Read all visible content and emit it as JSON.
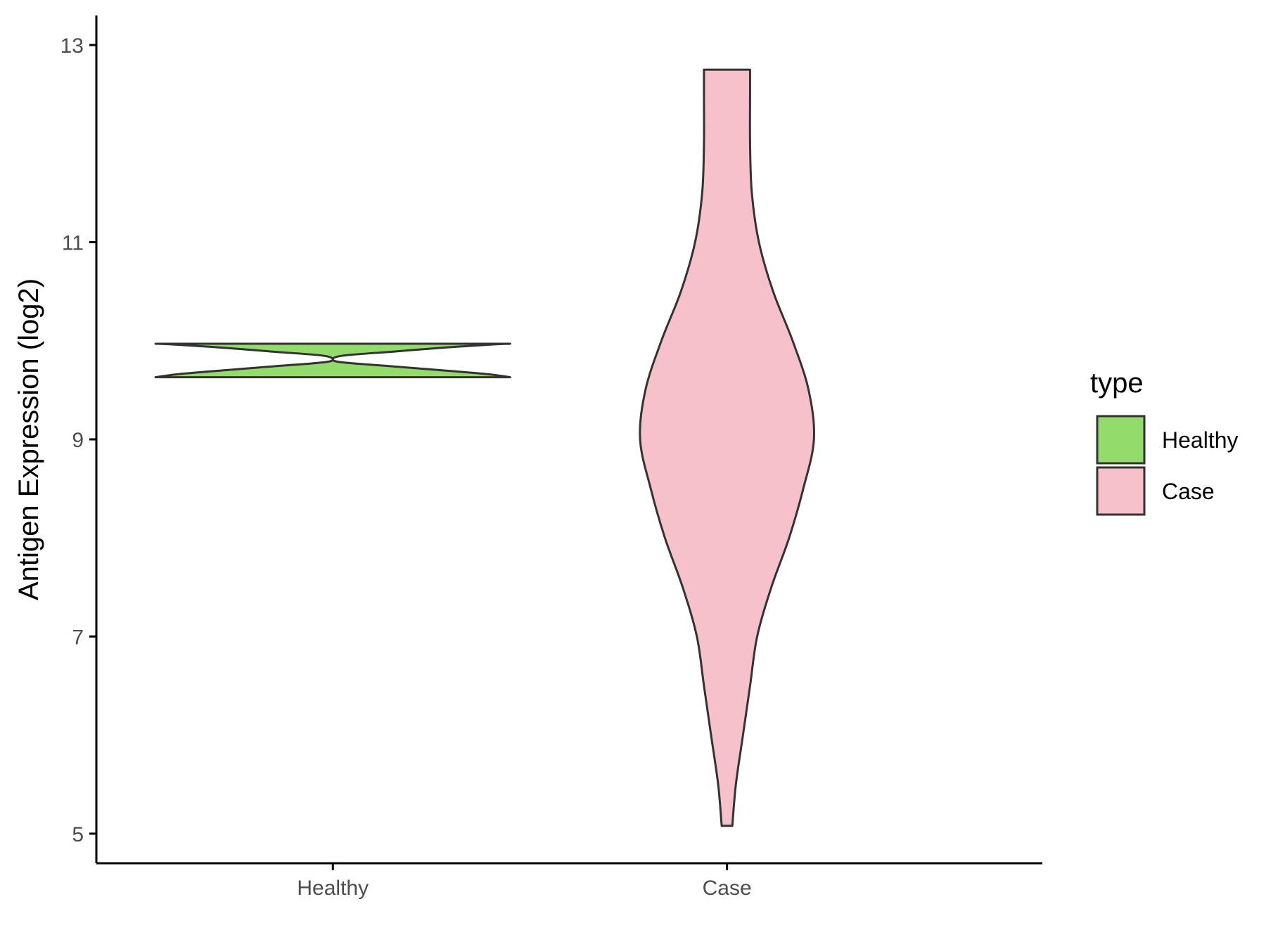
{
  "chart_data": {
    "type": "violin",
    "ylabel": "Antigen Expression (log2)",
    "xlabel": "",
    "ylim": [
      4.7,
      13.3
    ],
    "yticks": [
      5,
      7,
      9,
      11,
      13
    ],
    "categories": [
      "Healthy",
      "Case"
    ],
    "grid": false,
    "legend": {
      "title": "type",
      "placement": "right",
      "items": [
        {
          "label": "Healthy",
          "color": "#93dc6b"
        },
        {
          "label": "Case",
          "color": "#f7c1cb"
        }
      ]
    },
    "series": [
      {
        "name": "Healthy",
        "color": "#93dc6b",
        "min": 9.63,
        "max": 9.97,
        "density_profile": [
          [
            9.63,
            1.0
          ],
          [
            9.66,
            0.88
          ],
          [
            9.7,
            0.62
          ],
          [
            9.74,
            0.34
          ],
          [
            9.78,
            0.06
          ],
          [
            9.81,
            0.0
          ],
          [
            9.85,
            0.06
          ],
          [
            9.89,
            0.34
          ],
          [
            9.93,
            0.62
          ],
          [
            9.96,
            0.88
          ],
          [
            9.97,
            1.0
          ]
        ]
      },
      {
        "name": "Case",
        "color": "#f7c1cb",
        "min": 5.08,
        "max": 12.75,
        "density_profile": [
          [
            5.08,
            0.03
          ],
          [
            5.5,
            0.05
          ],
          [
            6.0,
            0.09
          ],
          [
            6.5,
            0.13
          ],
          [
            7.0,
            0.17
          ],
          [
            7.5,
            0.25
          ],
          [
            8.0,
            0.35
          ],
          [
            8.5,
            0.43
          ],
          [
            9.0,
            0.49
          ],
          [
            9.5,
            0.46
          ],
          [
            10.0,
            0.37
          ],
          [
            10.5,
            0.26
          ],
          [
            11.0,
            0.18
          ],
          [
            11.5,
            0.14
          ],
          [
            12.0,
            0.13
          ],
          [
            12.5,
            0.13
          ],
          [
            12.75,
            0.13
          ]
        ]
      }
    ]
  }
}
